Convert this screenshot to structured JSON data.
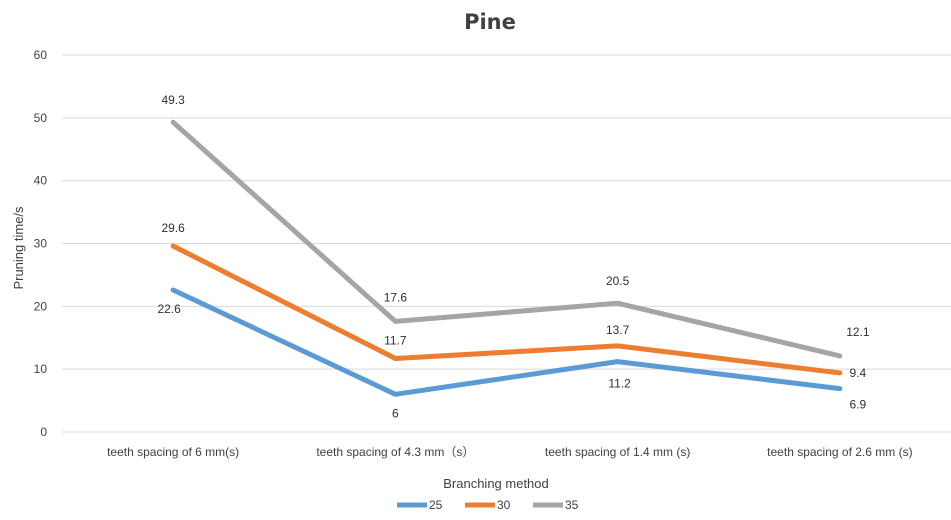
{
  "chart_data": {
    "type": "line",
    "title": "Pine",
    "xlabel": "Branching method",
    "ylabel": "Pruning time/s",
    "categories": [
      "teeth spacing of 6 mm(s)",
      "teeth spacing of 4.3 mm（s）",
      "teeth spacing of 1.4 mm (s)",
      "teeth spacing of 2.6 mm (s)"
    ],
    "ylim": [
      0,
      60
    ],
    "yticks": [
      0,
      10,
      20,
      30,
      40,
      50,
      60
    ],
    "grid": true,
    "legend_position": "bottom",
    "series": [
      {
        "name": "25",
        "color": "#5B9BD5",
        "values": [
          22.6,
          6,
          11.2,
          6.9
        ]
      },
      {
        "name": "30",
        "color": "#ED7D31",
        "values": [
          29.6,
          11.7,
          13.7,
          9.4
        ]
      },
      {
        "name": "35",
        "color": "#A5A5A5",
        "values": [
          49.3,
          17.6,
          20.5,
          12.1
        ]
      }
    ]
  }
}
